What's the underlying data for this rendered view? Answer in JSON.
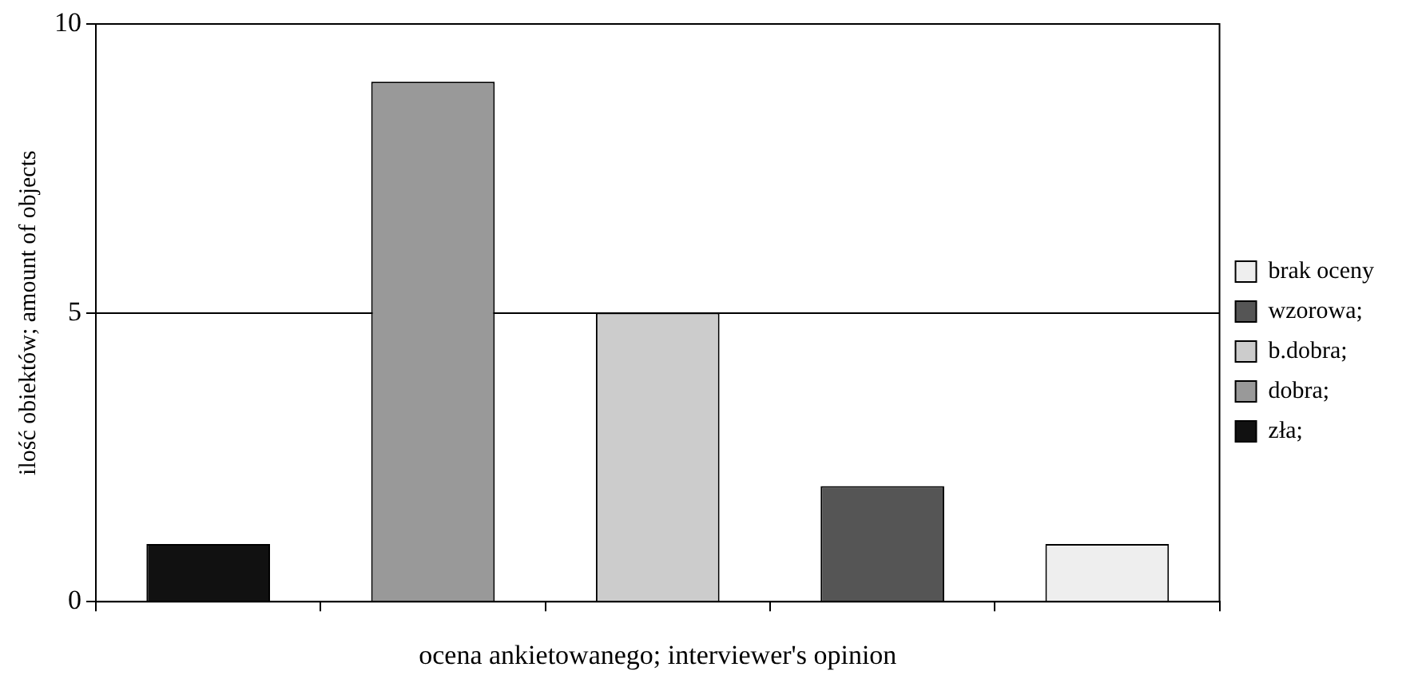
{
  "chart_data": {
    "type": "bar",
    "xlabel": "ocena ankietowanego; interviewer's opinion",
    "ylabel": "ilość obiektów; amount of objects",
    "categories": [
      null,
      null,
      null,
      null,
      null
    ],
    "series": [
      {
        "name": "brak oceny",
        "color": "#eeeeee",
        "values": [
          null,
          null,
          null,
          null,
          1
        ]
      },
      {
        "name": "wzorowa;",
        "color": "#555555",
        "values": [
          null,
          null,
          null,
          2,
          null
        ]
      },
      {
        "name": "b.dobra;",
        "color": "#cccccc",
        "values": [
          null,
          null,
          5,
          null,
          null
        ]
      },
      {
        "name": "dobra;",
        "color": "#999999",
        "values": [
          null,
          9,
          null,
          null,
          null
        ]
      },
      {
        "name": "zła;",
        "color": "#111111",
        "values": [
          1,
          null,
          null,
          null,
          null
        ]
      }
    ],
    "ylim": [
      0,
      10
    ],
    "yticks": [
      0,
      5,
      10
    ],
    "grid": "y",
    "legend": "right",
    "tick_labels": "y"
  }
}
